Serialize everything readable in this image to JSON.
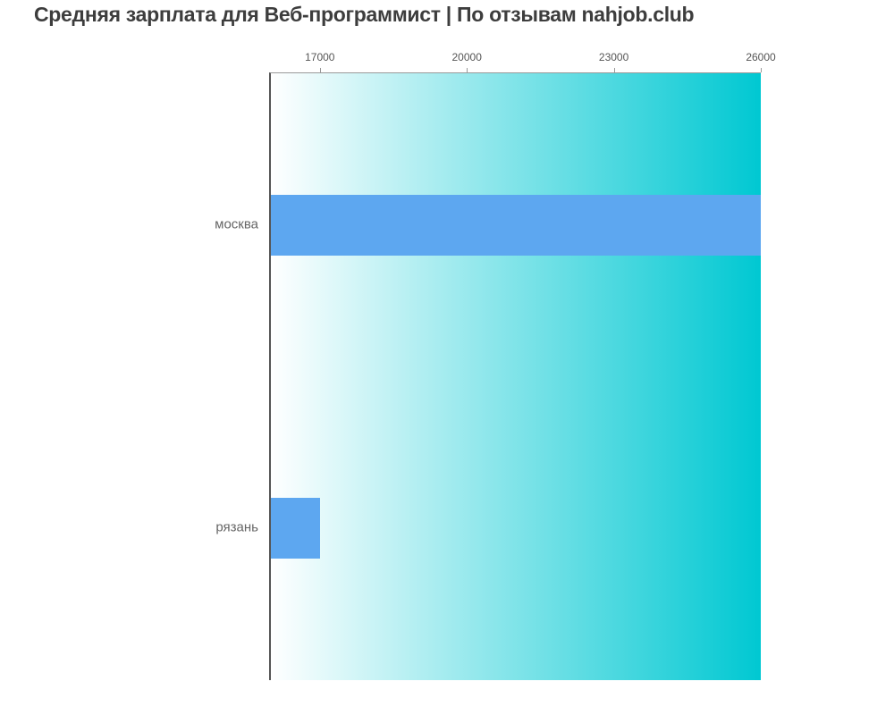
{
  "title": "Средняя зарплата для Веб-программист | По отзывам nahjob.club",
  "chart_data": {
    "type": "bar",
    "orientation": "horizontal",
    "title": "Средняя зарплата для Веб-программист | По отзывам nahjob.club",
    "categories": [
      "москва",
      "рязань"
    ],
    "values": [
      26000,
      17000
    ],
    "xlabel": "",
    "ylabel": "",
    "xlim": [
      16000,
      26000
    ],
    "xticks": [
      "17000",
      "20000",
      "23000",
      "26000"
    ],
    "xtick_values": [
      17000,
      20000,
      23000,
      26000
    ],
    "grid": false,
    "legend": false,
    "bar_color": "#5da7f0",
    "plot_bg_gradient_left": "#ffffff",
    "plot_bg_gradient_right": "#00c8d2",
    "axis_line_color": "#555555",
    "top_line_color": "#999999",
    "tick_label_color": "#555555",
    "category_label_color": "#666666",
    "title_color": "#3d3d3d"
  }
}
